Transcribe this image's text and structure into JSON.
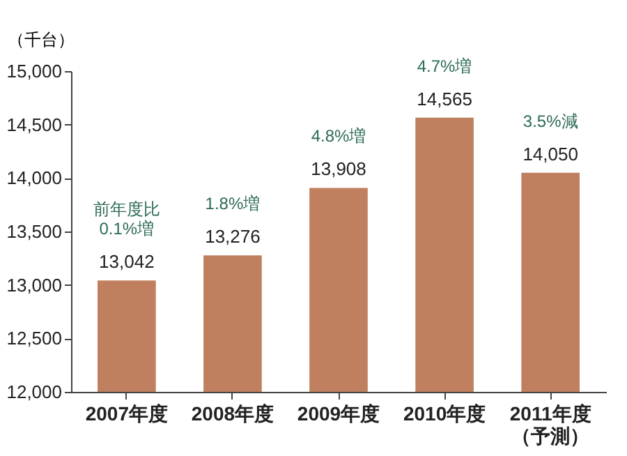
{
  "chart_data": {
    "type": "bar",
    "ylabel": "（千台）",
    "categories": [
      "2007年度",
      "2008年度",
      "2009年度",
      "2010年度",
      "2011年度（予測）"
    ],
    "values": [
      13042,
      13276,
      13908,
      14565,
      14050
    ],
    "color": "#c0805f",
    "value_labels": [
      "13,042",
      "13,276",
      "13,908",
      "14,565",
      "14,050"
    ],
    "ylim": [
      12000,
      15000
    ],
    "yticks": [
      {
        "value": 12000,
        "label": "12,000"
      },
      {
        "value": 12500,
        "label": "12,500"
      },
      {
        "value": 13000,
        "label": "13,000"
      },
      {
        "value": 13500,
        "label": "13,500"
      },
      {
        "value": 14000,
        "label": "14,000"
      },
      {
        "value": 14500,
        "label": "14,500"
      },
      {
        "value": 15000,
        "label": "15,000"
      }
    ],
    "grid": false,
    "annotations": [
      {
        "text": "前年度比\n0.1%増",
        "x": "2007年度",
        "y": 13042
      },
      {
        "text": "1.8%増",
        "x": "2008年度",
        "y": 13276
      },
      {
        "text": "4.8%増",
        "x": "2009年度",
        "y": 13908
      },
      {
        "text": "4.7%増",
        "x": "2010年度",
        "y": 14565
      },
      {
        "text": "3.5%減",
        "x": "2011年度（予測）",
        "y": 14050
      }
    ]
  }
}
